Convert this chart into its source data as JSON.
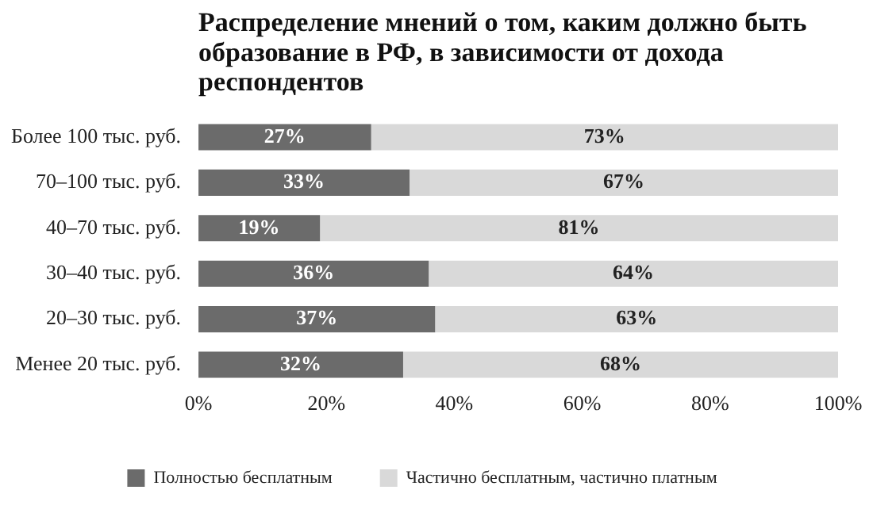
{
  "chart_data": {
    "type": "bar",
    "orientation": "horizontal",
    "stacked": true,
    "title": "Распределение мнений о том, каким должно быть образование в РФ, в зависимости от дохода респондентов",
    "categories": [
      "Более 100 тыс. руб.",
      "70–100 тыс. руб.",
      "40–70 тыс. руб.",
      "30–40 тыс. руб.",
      "20–30 тыс. руб.",
      "Менее 20 тыс. руб."
    ],
    "series": [
      {
        "name": "Полностью бесплатным",
        "color": "#6b6b6b",
        "values": [
          27,
          33,
          19,
          36,
          37,
          32
        ],
        "value_labels": [
          "27%",
          "33%",
          "19%",
          "36%",
          "37%",
          "32%"
        ]
      },
      {
        "name": "Частично бесплатным, частично платным",
        "color": "#d9d9d9",
        "values": [
          73,
          67,
          81,
          64,
          63,
          68
        ],
        "value_labels": [
          "73%",
          "67%",
          "81%",
          "64%",
          "63%",
          "68%"
        ]
      }
    ],
    "xlim": [
      0,
      100
    ],
    "xticks": [
      {
        "value": 0,
        "label": "0%"
      },
      {
        "value": 20,
        "label": "20%"
      },
      {
        "value": 40,
        "label": "40%"
      },
      {
        "value": 60,
        "label": "60%"
      },
      {
        "value": 80,
        "label": "80%"
      },
      {
        "value": 100,
        "label": "100%"
      }
    ],
    "grid": false,
    "legend": "bottom"
  }
}
